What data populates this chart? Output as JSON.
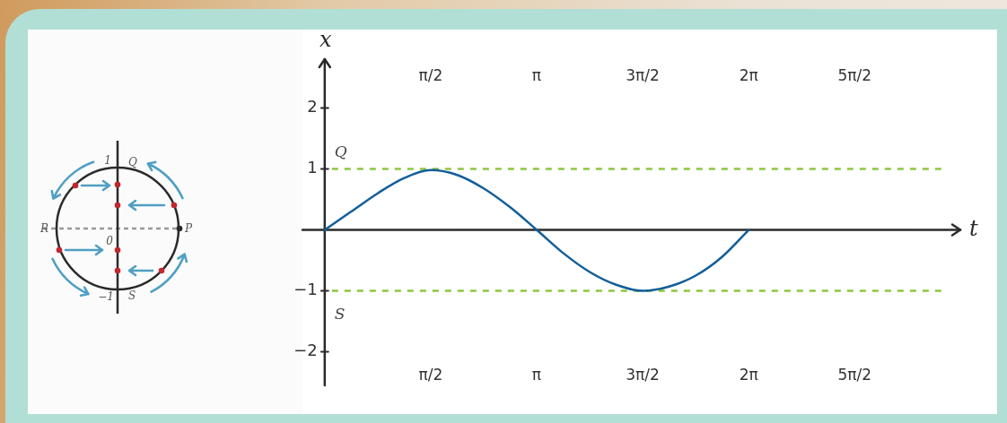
{
  "chart_data": {
    "type": "line",
    "xlabel": "t",
    "ylabel": "x",
    "x": [
      0,
      0.3927,
      0.7854,
      1.1781,
      1.5708,
      1.9635,
      2.3562,
      2.7489,
      3.1416,
      3.5343,
      3.927,
      4.3197,
      4.7124,
      5.1051,
      5.4978,
      5.8905,
      6.2832
    ],
    "series": [
      {
        "color": "#115e99",
        "values": [
          0,
          0.3,
          0.6,
          0.85,
          0.98,
          0.9,
          0.68,
          0.37,
          0,
          -0.38,
          -0.69,
          -0.9,
          -1,
          -0.93,
          -0.75,
          -0.44,
          0
        ]
      }
    ],
    "xlim": [
      -0.33,
      9.42
    ],
    "xticks": [
      {
        "value": 1.5708,
        "label": "π/2"
      },
      {
        "value": 3.1416,
        "label": "π"
      },
      {
        "value": 4.7124,
        "label": "3π/2"
      },
      {
        "value": 6.2832,
        "label": "2π"
      },
      {
        "value": 7.854,
        "label": "5π/2"
      }
    ],
    "x2lim": [
      -0.33,
      9.42
    ],
    "x2ticks": [
      {
        "value": 1.5708,
        "label": "π/2"
      },
      {
        "value": 3.1416,
        "label": "π"
      },
      {
        "value": 4.7124,
        "label": "3π/2"
      },
      {
        "value": 6.2832,
        "label": "2π"
      },
      {
        "value": 7.854,
        "label": "5π/2"
      }
    ],
    "ylim": [
      -2.55,
      2.8
    ],
    "yticks": [
      {
        "value": -2,
        "label": "−2"
      },
      {
        "value": -1,
        "label": "−1"
      },
      1,
      2
    ],
    "ref_lines": [
      {
        "axis": "y",
        "value": 1,
        "label": "Q",
        "color": "#8cc63f",
        "line_style": "dashed"
      },
      {
        "axis": "y",
        "value": -1,
        "label": "S",
        "color": "#8cc63f",
        "line_style": "dashed"
      }
    ],
    "annotations": [
      "Q",
      "P",
      "R",
      "S",
      "0",
      "1",
      "−1"
    ]
  }
}
